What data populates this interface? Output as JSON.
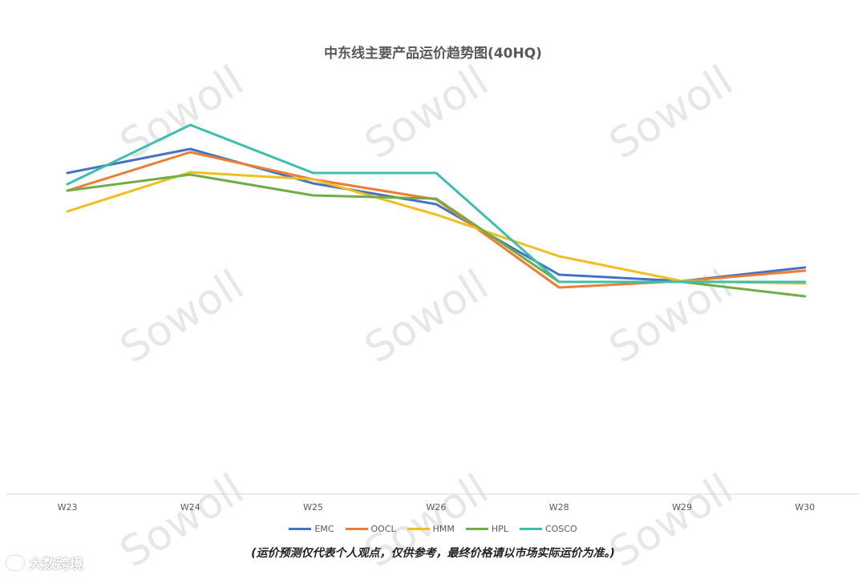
{
  "chart_data": {
    "type": "line",
    "title": "中东线主要产品运价趋势图(40HQ)",
    "categories": [
      "W23",
      "W24",
      "W25",
      "W26",
      "W28",
      "W29",
      "W30"
    ],
    "xlabel": "",
    "ylabel": "",
    "grid": false,
    "legend_position": "bottom",
    "series": [
      {
        "name": "EMC",
        "color": "#4472C4",
        "values": [
          216,
          186,
          229,
          255,
          343,
          351,
          334
        ]
      },
      {
        "name": "OOCL",
        "color": "#ED7D31",
        "values": [
          238,
          190,
          224,
          249,
          359,
          351,
          338
        ]
      },
      {
        "name": "HMM",
        "color": "#F0BE1E",
        "values": [
          264,
          215,
          224,
          268,
          320,
          351,
          354
        ]
      },
      {
        "name": "HPL",
        "color": "#70AD47",
        "values": [
          238,
          218,
          244,
          248,
          352,
          352,
          370
        ]
      },
      {
        "name": "COSCO",
        "color": "#3DBFB0",
        "values": [
          230,
          156,
          216,
          216,
          352,
          352,
          352
        ]
      }
    ],
    "ylim": [
      0,
      617
    ]
  },
  "disclaimer": "(运价预测仅代表个人观点，仅供参考，最终价格请以市场实际运价为准。)",
  "watermark": "Sowoll",
  "brand": "大数跨境"
}
